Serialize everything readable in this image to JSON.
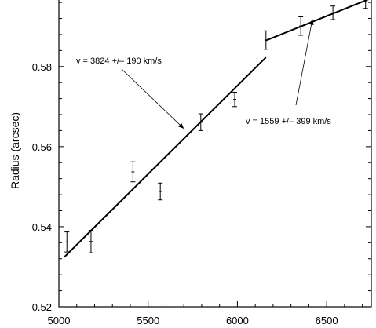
{
  "chart_data": {
    "type": "scatter",
    "title": "",
    "xlabel": "",
    "ylabel": "Radius (arcsec)",
    "xlim": [
      5000,
      6750
    ],
    "ylim": [
      0.52,
      0.597
    ],
    "xticks": [
      5000,
      5500,
      6000,
      6500
    ],
    "yticks": [
      0.52,
      0.54,
      0.56,
      0.58
    ],
    "ytick_labels": [
      "0.52",
      "0.54",
      "0.56",
      "0.58"
    ],
    "grid": false,
    "series": [
      {
        "type": "errorbar",
        "points": [
          {
            "x": 5045,
            "y": 0.5362,
            "err": 0.0025
          },
          {
            "x": 5180,
            "y": 0.5363,
            "err": 0.0028
          },
          {
            "x": 5415,
            "y": 0.5537,
            "err": 0.0025
          },
          {
            "x": 5568,
            "y": 0.5488,
            "err": 0.0021
          },
          {
            "x": 5795,
            "y": 0.5661,
            "err": 0.0021
          },
          {
            "x": 5985,
            "y": 0.5718,
            "err": 0.0018
          },
          {
            "x": 6160,
            "y": 0.5866,
            "err": 0.0023
          },
          {
            "x": 6355,
            "y": 0.5901,
            "err": 0.0023
          },
          {
            "x": 6535,
            "y": 0.5934,
            "err": 0.0017
          },
          {
            "x": 6718,
            "y": 0.5962,
            "err": 0.0017
          }
        ]
      },
      {
        "type": "fit-line",
        "label": "v = 3824 +/– 190 km/s",
        "x": [
          5030,
          6160
        ],
        "y": [
          0.5324,
          0.5823
        ]
      },
      {
        "type": "fit-line",
        "label": "v = 1559 +/– 399 km/s",
        "x": [
          6160,
          6735
        ],
        "y": [
          0.5865,
          0.5968
        ]
      }
    ],
    "annotations": [
      {
        "text": "v = 3824 +/– 190 km/s",
        "arrow_to": {
          "x": 5700,
          "y": 0.5645
        }
      },
      {
        "text": "v = 1559 +/– 399 km/s",
        "arrow_to": {
          "x": 6420,
          "y": 0.5918
        }
      }
    ]
  }
}
